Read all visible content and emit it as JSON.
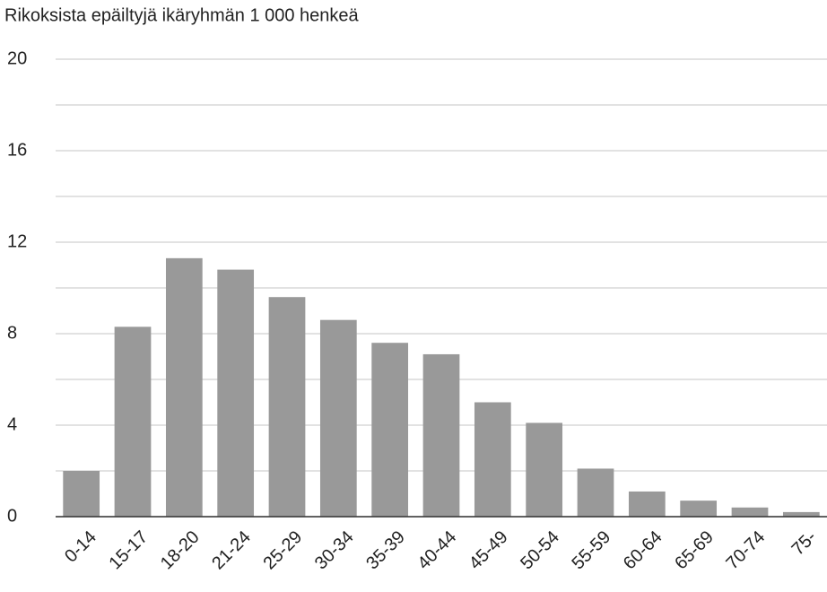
{
  "chart_data": {
    "type": "bar",
    "title": "Rikoksista epäiltyjä ikäryhmän 1 000 henkeä",
    "categories": [
      "0-14",
      "15-17",
      "18-20",
      "21-24",
      "25-29",
      "30-34",
      "35-39",
      "40-44",
      "45-49",
      "50-54",
      "55-59",
      "60-64",
      "65-69",
      "70-74",
      "75-"
    ],
    "values": [
      2.0,
      8.3,
      11.3,
      10.8,
      9.6,
      8.6,
      7.6,
      7.1,
      5.0,
      4.1,
      2.1,
      1.1,
      0.7,
      0.4,
      0.2
    ],
    "color": "#999999",
    "ylim": [
      0,
      20
    ],
    "yticks": [
      0,
      4,
      8,
      12,
      16,
      20
    ],
    "minor_yticks": [
      2,
      6,
      10,
      14,
      18
    ],
    "grid": true
  }
}
